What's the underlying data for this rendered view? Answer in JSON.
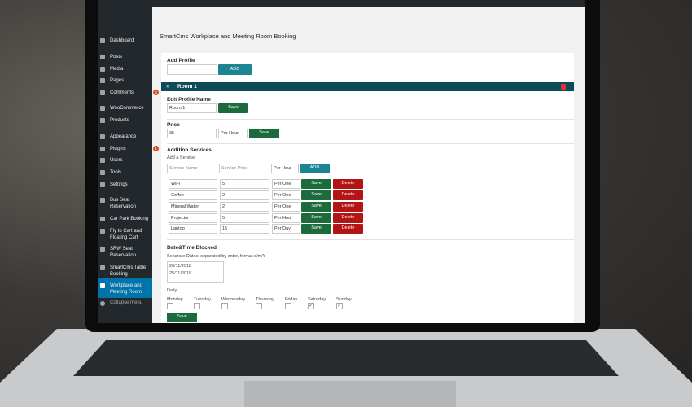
{
  "sidebar": {
    "items": [
      {
        "label": "Dashboard"
      },
      {
        "label": "Posts"
      },
      {
        "label": "Media"
      },
      {
        "label": "Pages"
      },
      {
        "label": "Comments",
        "badge": 6
      },
      {
        "label": "WooCommerce"
      },
      {
        "label": "Products"
      },
      {
        "label": "Appearance"
      },
      {
        "label": "Plugins",
        "badge": 1
      },
      {
        "label": "Users"
      },
      {
        "label": "Tools"
      },
      {
        "label": "Settings"
      },
      {
        "label": "Bus Seat Reservation"
      },
      {
        "label": "Car Park Booking"
      },
      {
        "label": "Fly to Cart and Floating Cart"
      },
      {
        "label": "SRW Seat Reservation"
      },
      {
        "label": "SmartCms Table Booking"
      },
      {
        "label": "Workplace and Meeting Room",
        "active": true
      }
    ],
    "collapse": "Collapse menu"
  },
  "page_title": "SmartCms Workplace and Meeting Room Booking",
  "labels": {
    "add": "ADD",
    "save": "Save",
    "delete": "Delete"
  },
  "add_profile": {
    "label": "Add Profile"
  },
  "room": {
    "title": "Room 1",
    "edit_name": {
      "label": "Edit Profile Name",
      "value": "Room 1"
    },
    "price": {
      "label": "Price",
      "value": 35,
      "unit": "Per Hour"
    },
    "services": {
      "label": "Addition Services",
      "sublabel": "Add a Service",
      "placeholders": {
        "name": "Service Name",
        "price": "Service Price",
        "unit": "Per Hour"
      },
      "rows": [
        {
          "name": "WiFi",
          "price": 5,
          "unit": "Per One"
        },
        {
          "name": "Coffee",
          "price": 2,
          "unit": "Per One"
        },
        {
          "name": "Mineral Water",
          "price": 2,
          "unit": "Per One"
        },
        {
          "name": "Projector",
          "price": 5,
          "unit": "Per Hour"
        },
        {
          "name": "Laptop",
          "price": 15,
          "unit": "Per Day"
        }
      ]
    },
    "blocked": {
      "label": "Date&Time Blocked",
      "help": "Separate Dates: separated by enter, format d/m/Y",
      "dates": [
        "20/11/2018",
        "25/11/2018"
      ],
      "daily_label": "Daily",
      "days": [
        {
          "name": "Monday",
          "checked": false
        },
        {
          "name": "Tuesday",
          "checked": false
        },
        {
          "name": "Wednesday",
          "checked": false
        },
        {
          "name": "Thursday",
          "checked": false
        },
        {
          "name": "Friday",
          "checked": false
        },
        {
          "name": "Saturday",
          "checked": true
        },
        {
          "name": "Sunday",
          "checked": true
        }
      ]
    }
  }
}
